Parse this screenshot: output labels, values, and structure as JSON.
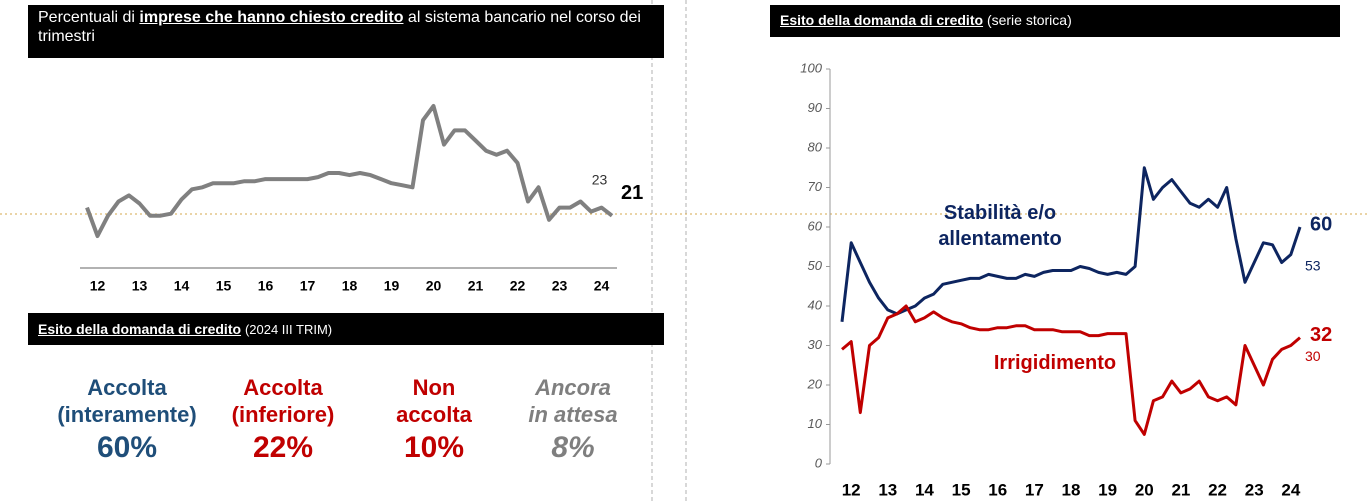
{
  "left_header": {
    "parts": [
      {
        "text": "Percentuali di ",
        "strong": false
      },
      {
        "text": "imprese che hanno chiesto credito",
        "strong": true
      },
      {
        "text": " al sistema bancario nel corso dei trimestri",
        "strong": false
      }
    ]
  },
  "outcome_header": {
    "title": "Esito della domanda di credito",
    "note": "(2024 III TRIM)"
  },
  "outcome_items": [
    {
      "label_lines": [
        "Accolta",
        "(interamente)"
      ],
      "value": "60%",
      "color": "#1f4e79",
      "italic": false
    },
    {
      "label_lines": [
        "Accolta",
        "(inferiore)"
      ],
      "value": "22%",
      "color": "#c00000",
      "italic": false
    },
    {
      "label_lines": [
        "Non",
        "accolta"
      ],
      "value": "10%",
      "color": "#c00000",
      "italic": false
    },
    {
      "label_lines": [
        "Ancora",
        "in attesa"
      ],
      "value": "8%",
      "color": "#7f7f7f",
      "italic": true
    }
  ],
  "right_header": {
    "title": "Esito della domanda di credito",
    "note": "(serie storica)"
  },
  "chart_data": [
    {
      "type": "line",
      "categories": [
        null,
        "12",
        null,
        null,
        null,
        "13",
        null,
        null,
        null,
        "14",
        null,
        null,
        null,
        "15",
        null,
        null,
        null,
        "16",
        null,
        null,
        null,
        "17",
        null,
        null,
        null,
        "18",
        null,
        null,
        null,
        "19",
        null,
        null,
        null,
        "20",
        null,
        null,
        null,
        "21",
        null,
        null,
        null,
        "22",
        null,
        null,
        null,
        "23",
        null,
        null,
        null,
        "24",
        null
      ],
      "values": [
        23,
        16,
        21,
        24.5,
        26,
        24,
        21,
        21,
        21.5,
        25,
        27.5,
        28,
        29,
        29,
        29,
        29.5,
        29.5,
        30,
        30,
        30,
        30,
        30,
        30.5,
        31.5,
        31.5,
        31,
        31.5,
        31,
        30,
        29,
        28.5,
        28,
        44.5,
        48,
        38.5,
        42,
        42,
        39.5,
        37,
        36,
        37,
        34,
        24.5,
        28,
        20,
        23,
        23,
        24.5,
        22,
        23,
        21
      ],
      "color": "#808080"
    },
    {
      "type": "line",
      "categories": [
        null,
        "12",
        null,
        null,
        null,
        "13",
        null,
        null,
        null,
        "14",
        null,
        null,
        null,
        "15",
        null,
        null,
        null,
        "16",
        null,
        null,
        null,
        "17",
        null,
        null,
        null,
        "18",
        null,
        null,
        null,
        "19",
        null,
        null,
        null,
        "20",
        null,
        null,
        null,
        "21",
        null,
        null,
        null,
        "22",
        null,
        null,
        null,
        "23",
        null,
        null,
        null,
        "24",
        null
      ],
      "ylim": [
        0,
        100
      ],
      "yticks": [
        0,
        10,
        20,
        30,
        40,
        50,
        60,
        70,
        80,
        90,
        100
      ],
      "series": [
        {
          "name": "Stabilità e/o allentamento",
          "color": "#0d2560",
          "values": [
            36,
            56,
            51,
            46,
            42,
            39,
            38,
            39,
            40,
            42,
            43,
            45.5,
            46,
            46.5,
            47,
            47,
            48,
            47.5,
            47,
            47,
            48,
            47.5,
            48.5,
            49,
            49,
            49,
            50,
            49.5,
            48.5,
            48,
            48.5,
            48,
            50,
            75,
            67,
            70,
            72,
            69,
            66,
            65,
            67,
            65,
            70,
            57,
            46,
            51,
            56,
            55.5,
            51,
            53,
            60
          ]
        },
        {
          "name": "Irrigidimento",
          "color": "#c00000",
          "values": [
            29,
            31,
            13,
            30,
            32,
            37,
            38,
            40,
            36,
            37,
            38.5,
            37,
            36,
            35.5,
            34.5,
            34,
            34,
            34.5,
            34.5,
            35,
            35,
            34,
            34,
            34,
            33.5,
            33.5,
            33.5,
            32.5,
            32.5,
            33,
            33,
            33,
            11,
            7.5,
            16,
            17,
            21,
            18,
            19,
            21,
            17,
            16,
            17,
            15,
            30,
            25,
            20,
            26.5,
            29,
            30,
            32
          ]
        }
      ]
    }
  ]
}
